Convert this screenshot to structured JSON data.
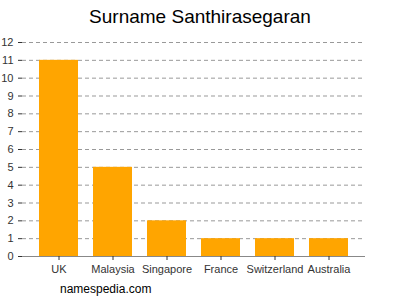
{
  "chart_data": {
    "type": "bar",
    "title": "Surname Santhirasegaran",
    "caption": "namespedia.com",
    "categories": [
      "UK",
      "Malaysia",
      "Singapore",
      "France",
      "Switzerland",
      "Australia"
    ],
    "values": [
      11,
      5,
      2,
      1,
      1,
      1
    ],
    "color": "#ffa500",
    "ylim": [
      0,
      12
    ],
    "yticks": [
      0,
      1,
      2,
      3,
      4,
      5,
      6,
      7,
      8,
      9,
      10,
      11,
      12
    ],
    "grid": true
  }
}
